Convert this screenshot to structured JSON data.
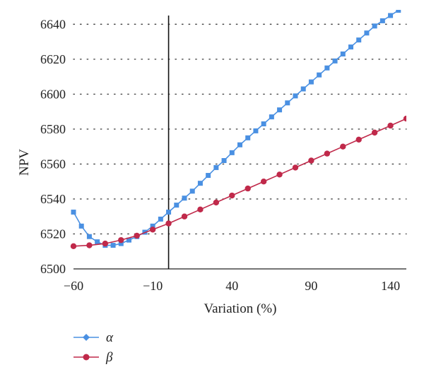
{
  "chart_data": {
    "type": "line",
    "xlabel": "Variation (%)",
    "ylabel": "NPV",
    "xlim": [
      -60,
      150
    ],
    "ylim": [
      6500,
      6645
    ],
    "x_ticks": [
      -60,
      -10,
      40,
      90,
      140
    ],
    "x_tick_labels": [
      "−60",
      "−10",
      "40",
      "90",
      "140"
    ],
    "y_ticks": [
      6500,
      6520,
      6540,
      6560,
      6580,
      6600,
      6620,
      6640
    ],
    "y_tick_labels": [
      "6500",
      "6520",
      "6540",
      "6560",
      "6580",
      "6600",
      "6620",
      "6640"
    ],
    "vertical_line_x": 0,
    "grid": "horizontal dotted",
    "legend_position": "bottom-left",
    "series": [
      {
        "name": "α",
        "color": "#4a90e2",
        "marker": "square",
        "legend_marker": "diamond",
        "x": [
          -60,
          -55,
          -50,
          -45,
          -40,
          -35,
          -30,
          -25,
          -20,
          -15,
          -10,
          -5,
          0,
          5,
          10,
          15,
          20,
          25,
          30,
          35,
          40,
          45,
          50,
          55,
          60,
          65,
          70,
          75,
          80,
          85,
          90,
          95,
          100,
          105,
          110,
          115,
          120,
          125,
          130,
          135,
          140,
          145,
          150
        ],
        "y": [
          6532.5,
          6524.5,
          6518.5,
          6515.5,
          6513.5,
          6513.5,
          6514.5,
          6516.5,
          6518.5,
          6521,
          6524.5,
          6528.5,
          6532.5,
          6536.5,
          6540.5,
          6544.5,
          6549,
          6553.5,
          6558,
          6562,
          6566.5,
          6571,
          6575,
          6579,
          6583,
          6587,
          6591,
          6595,
          6599,
          6603,
          6607,
          6611,
          6615,
          6619,
          6623,
          6627,
          6631,
          6635,
          6639,
          6642,
          6645,
          6648,
          6651
        ]
      },
      {
        "name": "β",
        "color": "#c0294a",
        "marker": "circle",
        "legend_marker": "circle",
        "x": [
          -60,
          -50,
          -40,
          -30,
          -20,
          -10,
          0,
          10,
          20,
          30,
          40,
          50,
          60,
          70,
          80,
          90,
          100,
          110,
          120,
          130,
          140,
          150
        ],
        "y": [
          6513,
          6513.5,
          6514.5,
          6516.5,
          6519,
          6522.5,
          6526,
          6530,
          6534,
          6538,
          6542,
          6546,
          6550,
          6554,
          6558,
          6562,
          6566,
          6570,
          6574,
          6578,
          6582,
          6586
        ]
      }
    ]
  }
}
